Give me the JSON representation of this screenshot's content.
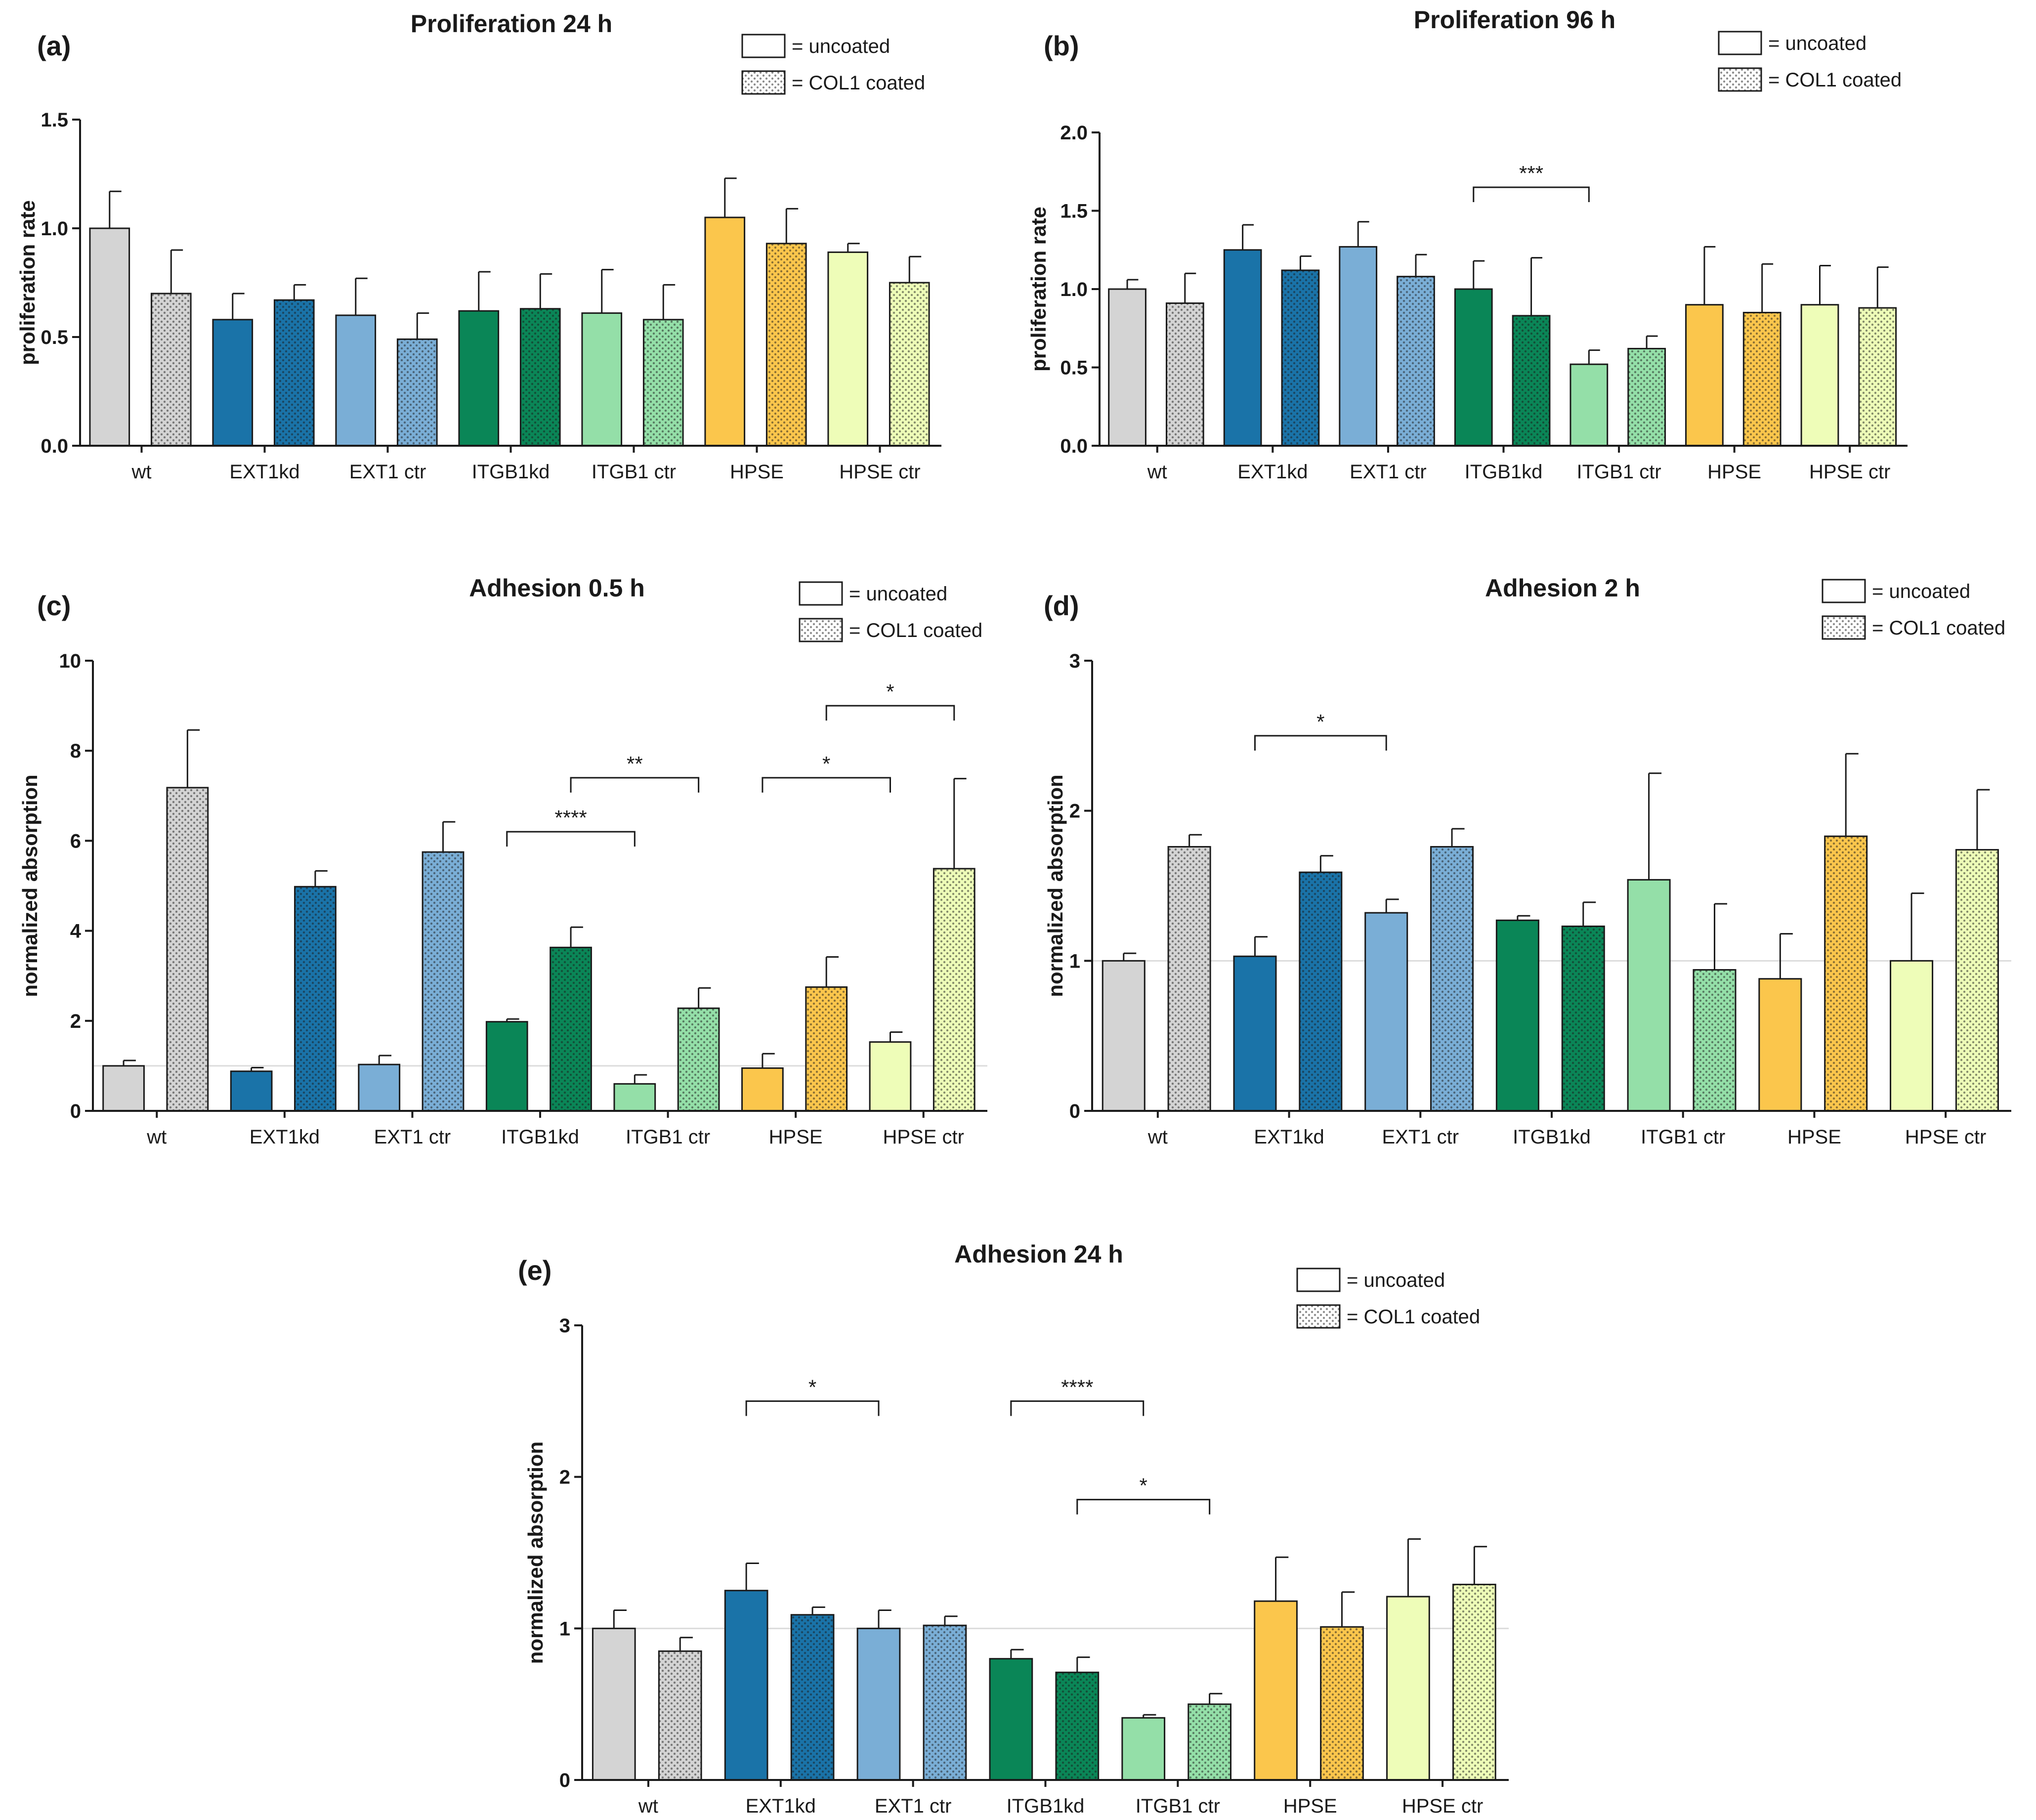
{
  "colors": {
    "wt": "#d4d4d4",
    "EXT1kd": "#1a73a8",
    "EXT1 ctr": "#7aaed6",
    "ITGB1kd": "#0a8657",
    "ITGB1 ctr": "#94dfa8",
    "HPSE": "#fbc64c",
    "HPSE ctr": "#eefdb8",
    "outline": "#1a1a1a",
    "reference_line": "#dcdcdc"
  },
  "legend": {
    "uncoated": "= uncoated",
    "coated": "= COL1 coated"
  },
  "chart_data": [
    {
      "id": "a",
      "panel_label": "(a)",
      "type": "bar",
      "title": "Proliferation 24 h",
      "xlabel": "",
      "ylabel": "proliferation rate",
      "ylim": [
        0,
        1.5
      ],
      "yticks": [
        0,
        0.5,
        1.0,
        1.5
      ],
      "ytick_labels": [
        "0.0",
        "0.5",
        "1.0",
        "1.5"
      ],
      "reference_line": null,
      "categories": [
        "wt",
        "EXT1kd",
        "EXT1 ctr",
        "ITGB1kd",
        "ITGB1 ctr",
        "HPSE",
        "HPSE ctr"
      ],
      "series": [
        {
          "name": "uncoated",
          "values": [
            1.0,
            0.58,
            0.6,
            0.62,
            0.61,
            1.05,
            0.89
          ],
          "errors": [
            0.17,
            0.12,
            0.17,
            0.18,
            0.2,
            0.18,
            0.04
          ]
        },
        {
          "name": "COL1 coated",
          "values": [
            0.7,
            0.67,
            0.49,
            0.63,
            0.58,
            0.93,
            0.75
          ],
          "errors": [
            0.2,
            0.07,
            0.12,
            0.16,
            0.16,
            0.16,
            0.12
          ]
        }
      ],
      "significance": []
    },
    {
      "id": "b",
      "panel_label": "(b)",
      "type": "bar",
      "title": "Proliferation 96 h",
      "xlabel": "",
      "ylabel": "proliferation rate",
      "ylim": [
        0,
        2.0
      ],
      "yticks": [
        0,
        0.5,
        1.0,
        1.5,
        2.0
      ],
      "ytick_labels": [
        "0.0",
        "0.5",
        "1.0",
        "1.5",
        "2.0"
      ],
      "reference_line": null,
      "categories": [
        "wt",
        "EXT1kd",
        "EXT1 ctr",
        "ITGB1kd",
        "ITGB1 ctr",
        "HPSE",
        "HPSE ctr"
      ],
      "series": [
        {
          "name": "uncoated",
          "values": [
            1.0,
            1.25,
            1.27,
            1.0,
            0.52,
            0.9,
            0.9
          ],
          "errors": [
            0.06,
            0.16,
            0.16,
            0.18,
            0.09,
            0.37,
            0.25
          ]
        },
        {
          "name": "COL1 coated",
          "values": [
            0.91,
            1.12,
            1.08,
            0.83,
            0.62,
            0.85,
            0.88
          ],
          "errors": [
            0.19,
            0.09,
            0.14,
            0.37,
            0.08,
            0.31,
            0.26
          ]
        }
      ],
      "significance": [
        {
          "from": [
            3,
            0
          ],
          "to": [
            4,
            0
          ],
          "label": "***",
          "y": 1.65
        }
      ]
    },
    {
      "id": "c",
      "panel_label": "(c)",
      "type": "bar",
      "title": "Adhesion 0.5 h",
      "xlabel": "",
      "ylabel": "normalized absorption",
      "ylim": [
        0,
        10
      ],
      "yticks": [
        0,
        2,
        4,
        6,
        8,
        10
      ],
      "ytick_labels": [
        "0",
        "2",
        "4",
        "6",
        "8",
        "10"
      ],
      "reference_line": 1,
      "categories": [
        "wt",
        "EXT1kd",
        "EXT1 ctr",
        "ITGB1kd",
        "ITGB1 ctr",
        "HPSE",
        "HPSE ctr"
      ],
      "series": [
        {
          "name": "uncoated",
          "values": [
            1.0,
            0.88,
            1.03,
            1.98,
            0.6,
            0.95,
            1.53
          ],
          "errors": [
            0.12,
            0.08,
            0.2,
            0.06,
            0.2,
            0.32,
            0.22
          ]
        },
        {
          "name": "COL1 coated",
          "values": [
            7.18,
            4.98,
            5.75,
            3.63,
            2.28,
            2.75,
            5.38
          ],
          "errors": [
            1.28,
            0.35,
            0.67,
            0.45,
            0.45,
            0.67,
            2.0
          ]
        }
      ],
      "significance": [
        {
          "from": [
            3,
            0
          ],
          "to": [
            4,
            0
          ],
          "label": "****",
          "y": 6.2
        },
        {
          "from": [
            3,
            1
          ],
          "to": [
            4,
            1
          ],
          "label": "**",
          "y": 7.4
        },
        {
          "from": [
            5,
            0
          ],
          "to": [
            6,
            0
          ],
          "label": "*",
          "y": 7.4
        },
        {
          "from": [
            5,
            1
          ],
          "to": [
            6,
            1
          ],
          "label": "*",
          "y": 9.0
        }
      ]
    },
    {
      "id": "d",
      "panel_label": "(d)",
      "type": "bar",
      "title": "Adhesion 2 h",
      "xlabel": "",
      "ylabel": "normalized absorption",
      "ylim": [
        0,
        3
      ],
      "yticks": [
        0,
        1,
        2,
        3
      ],
      "ytick_labels": [
        "0",
        "1",
        "2",
        "3"
      ],
      "reference_line": 1,
      "categories": [
        "wt",
        "EXT1kd",
        "EXT1 ctr",
        "ITGB1kd",
        "ITGB1 ctr",
        "HPSE",
        "HPSE ctr"
      ],
      "series": [
        {
          "name": "uncoated",
          "values": [
            1.0,
            1.03,
            1.32,
            1.27,
            1.54,
            0.88,
            1.0
          ],
          "errors": [
            0.05,
            0.13,
            0.09,
            0.03,
            0.71,
            0.3,
            0.45
          ]
        },
        {
          "name": "COL1 coated",
          "values": [
            1.76,
            1.59,
            1.76,
            1.23,
            0.94,
            1.83,
            1.74
          ],
          "errors": [
            0.08,
            0.11,
            0.12,
            0.16,
            0.44,
            0.55,
            0.4
          ]
        }
      ],
      "significance": [
        {
          "from": [
            1,
            0
          ],
          "to": [
            2,
            0
          ],
          "label": "*",
          "y": 2.5
        }
      ]
    },
    {
      "id": "e",
      "panel_label": "(e)",
      "type": "bar",
      "title": "Adhesion 24 h",
      "xlabel": "",
      "ylabel": "normalized absorption",
      "ylim": [
        0,
        3
      ],
      "yticks": [
        0,
        1,
        2,
        3
      ],
      "ytick_labels": [
        "0",
        "1",
        "2",
        "3"
      ],
      "reference_line": 1,
      "categories": [
        "wt",
        "EXT1kd",
        "EXT1 ctr",
        "ITGB1kd",
        "ITGB1 ctr",
        "HPSE",
        "HPSE ctr"
      ],
      "series": [
        {
          "name": "uncoated",
          "values": [
            1.0,
            1.25,
            1.0,
            0.8,
            0.41,
            1.18,
            1.21
          ],
          "errors": [
            0.12,
            0.18,
            0.12,
            0.06,
            0.02,
            0.29,
            0.38
          ]
        },
        {
          "name": "COL1 coated",
          "values": [
            0.85,
            1.09,
            1.02,
            0.71,
            0.5,
            1.01,
            1.29
          ],
          "errors": [
            0.09,
            0.05,
            0.06,
            0.1,
            0.07,
            0.23,
            0.25
          ]
        }
      ],
      "significance": [
        {
          "from": [
            1,
            0
          ],
          "to": [
            2,
            0
          ],
          "label": "*",
          "y": 2.5
        },
        {
          "from": [
            3,
            0
          ],
          "to": [
            4,
            0
          ],
          "label": "****",
          "y": 2.5
        },
        {
          "from": [
            3,
            1
          ],
          "to": [
            4,
            1
          ],
          "label": "*",
          "y": 1.85
        }
      ]
    }
  ]
}
